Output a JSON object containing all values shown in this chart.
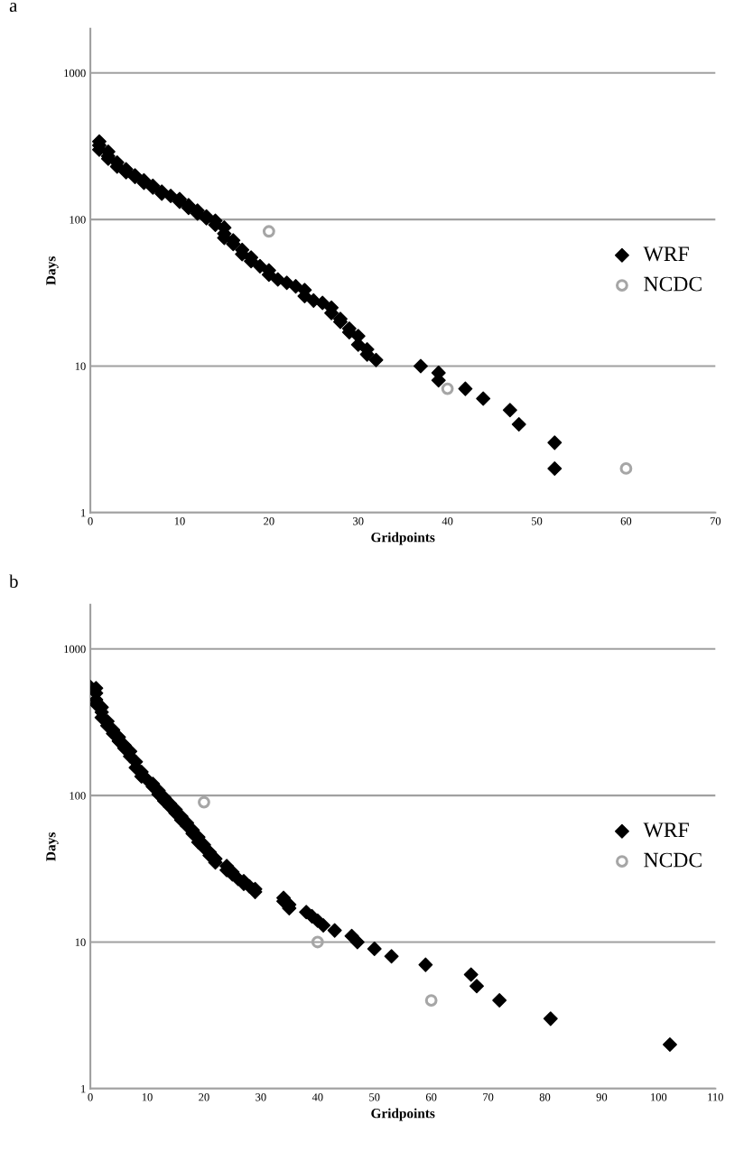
{
  "chart_data": [
    {
      "type": "scatter",
      "title": "a",
      "xlabel": "Gridpoints",
      "ylabel": "Days",
      "log": "y",
      "grid": "y",
      "legend": "right",
      "xlim": [
        0,
        70
      ],
      "xticks": [
        0,
        10,
        20,
        30,
        40,
        50,
        60,
        70
      ],
      "ylim": [
        1,
        2000
      ],
      "yticks": [
        1,
        10,
        100,
        1000
      ],
      "series": [
        {
          "name": "WRF",
          "color": "#000000",
          "marker": "diamond",
          "x": [
            1,
            1,
            1,
            2,
            2,
            2,
            3,
            3,
            4,
            4,
            5,
            5,
            6,
            6,
            7,
            7,
            8,
            8,
            9,
            10,
            10,
            11,
            11,
            12,
            12,
            13,
            13,
            14,
            14,
            15,
            15,
            15,
            16,
            16,
            17,
            17,
            18,
            18,
            19,
            20,
            20,
            21,
            22,
            23,
            24,
            24,
            25,
            26,
            27,
            27,
            28,
            28,
            29,
            29,
            30,
            30,
            31,
            31,
            32,
            37,
            39,
            39,
            42,
            44,
            47,
            48,
            52,
            52
          ],
          "values": [
            340,
            320,
            300,
            290,
            270,
            260,
            245,
            230,
            220,
            210,
            200,
            195,
            185,
            178,
            170,
            165,
            155,
            150,
            145,
            138,
            132,
            125,
            120,
            115,
            110,
            105,
            102,
            98,
            92,
            88,
            80,
            75,
            72,
            68,
            62,
            58,
            55,
            52,
            48,
            45,
            42,
            39,
            37,
            35,
            33,
            30,
            28,
            27,
            25,
            23,
            21,
            20,
            18,
            17,
            16,
            14,
            13,
            12,
            11,
            10,
            9,
            8,
            7,
            6,
            5,
            4,
            3,
            2
          ]
        },
        {
          "name": "NCDC",
          "color": "#a6a6a6",
          "marker": "circle",
          "x": [
            20,
            40,
            60
          ],
          "values": [
            83,
            7,
            2
          ]
        }
      ]
    },
    {
      "type": "scatter",
      "title": "b",
      "xlabel": "Gridpoints",
      "ylabel": "Days",
      "log": "y",
      "grid": "y",
      "legend": "right",
      "xlim": [
        0,
        110
      ],
      "xticks": [
        0,
        10,
        20,
        30,
        40,
        50,
        60,
        70,
        80,
        90,
        100,
        110
      ],
      "ylim": [
        1,
        2000
      ],
      "yticks": [
        1,
        10,
        100,
        1000
      ],
      "series": [
        {
          "name": "WRF",
          "color": "#000000",
          "marker": "diamond",
          "x": [
            0,
            1,
            1,
            1,
            1,
            2,
            2,
            2,
            3,
            3,
            4,
            4,
            5,
            5,
            6,
            6,
            7,
            7,
            8,
            8,
            9,
            9,
            10,
            11,
            11,
            12,
            12,
            13,
            13,
            14,
            14,
            15,
            15,
            16,
            16,
            17,
            17,
            18,
            18,
            19,
            19,
            20,
            20,
            21,
            21,
            22,
            22,
            24,
            24,
            25,
            25,
            26,
            27,
            27,
            28,
            29,
            29,
            34,
            34,
            35,
            35,
            38,
            39,
            40,
            41,
            43,
            46,
            47,
            50,
            53,
            59,
            67,
            68,
            72,
            81,
            102
          ],
          "values": [
            550,
            540,
            500,
            450,
            420,
            400,
            370,
            340,
            320,
            300,
            280,
            265,
            250,
            235,
            220,
            210,
            200,
            185,
            170,
            155,
            145,
            135,
            128,
            120,
            115,
            108,
            102,
            97,
            92,
            88,
            84,
            80,
            76,
            72,
            68,
            65,
            62,
            58,
            55,
            52,
            48,
            46,
            44,
            41,
            39,
            37,
            35,
            33,
            31,
            30,
            29,
            27,
            26,
            25,
            24,
            23,
            22,
            20,
            19,
            18,
            17,
            16,
            15,
            14,
            13,
            12,
            11,
            10,
            9,
            8,
            7,
            6,
            5,
            4,
            3,
            2
          ]
        },
        {
          "name": "NCDC",
          "color": "#a6a6a6",
          "marker": "circle",
          "x": [
            20,
            40,
            60
          ],
          "values": [
            90,
            10,
            4
          ]
        }
      ]
    }
  ]
}
